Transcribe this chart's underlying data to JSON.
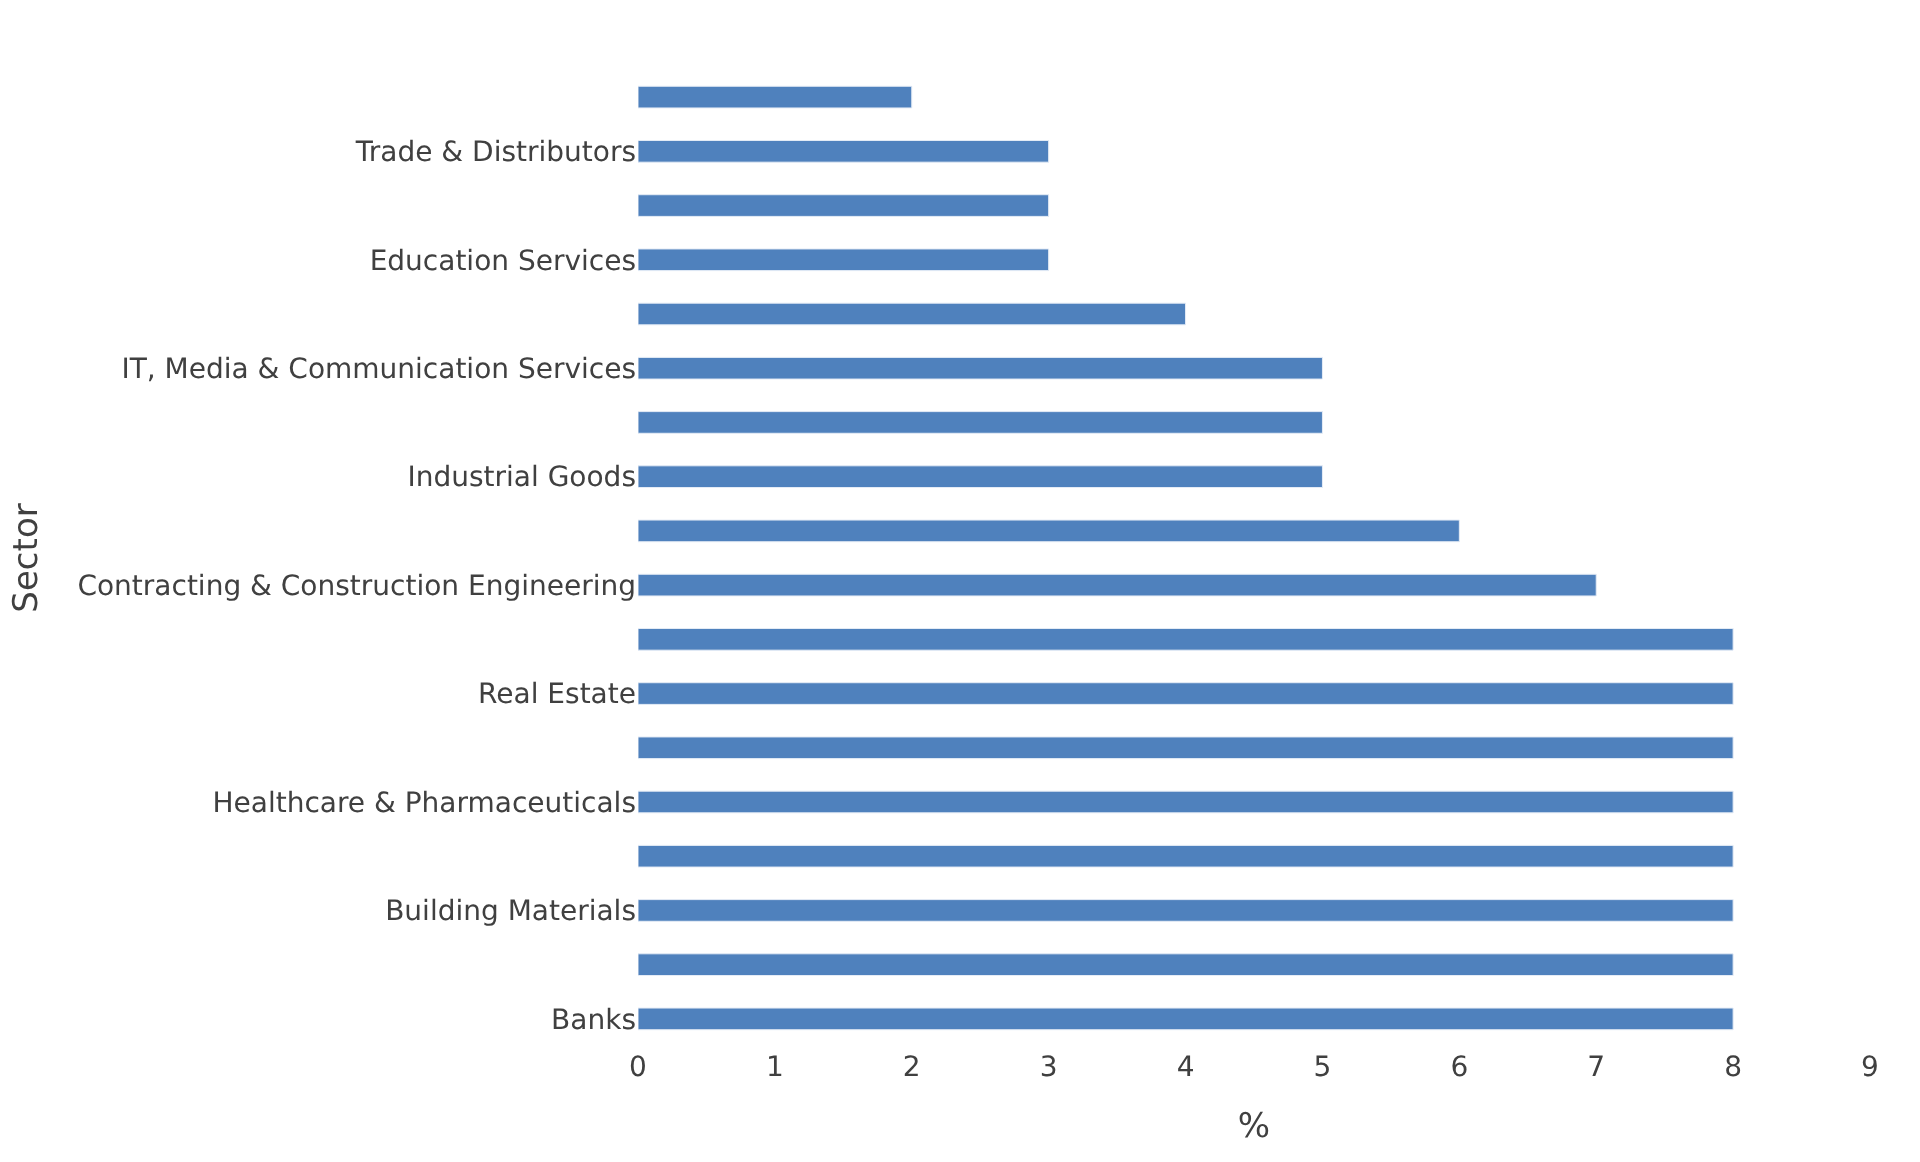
{
  "chart_data": {
    "type": "bar",
    "orientation": "horizontal",
    "xlabel": "%",
    "ylabel": "Sector",
    "categories": [
      null,
      "Trade & Distributors",
      null,
      "Education Services",
      null,
      "IT, Media & Communication Services",
      null,
      "Industrial Goods",
      null,
      "Contracting & Construction Engineering",
      null,
      "Real Estate",
      null,
      "Healthcare & Pharmaceuticals",
      null,
      "Building Materials",
      null,
      "Banks"
    ],
    "values": [
      2,
      3,
      3,
      3,
      4,
      5,
      5,
      5,
      6,
      7,
      8,
      8,
      8,
      8,
      8,
      8,
      8,
      8
    ],
    "color": "#4f81bd",
    "xlim": [
      0,
      9
    ],
    "xticks": [
      0,
      1,
      2,
      3,
      4,
      5,
      6,
      7,
      8,
      9
    ]
  }
}
